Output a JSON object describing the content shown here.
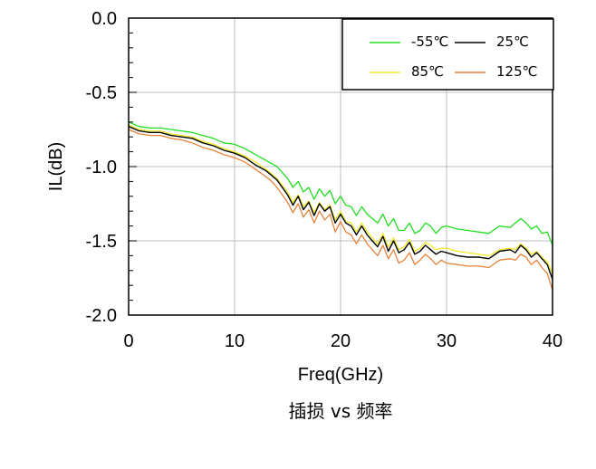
{
  "chart_data": {
    "type": "line",
    "caption": "插损 vs 频率",
    "xlabel": "Freq(GHz)",
    "ylabel": "IL(dB)",
    "xlim": [
      0,
      40
    ],
    "ylim": [
      -2.0,
      0.0
    ],
    "xticks": [
      0,
      10,
      20,
      30,
      40
    ],
    "xtick_labels": [
      "0",
      "10",
      "20",
      "30",
      "40"
    ],
    "yticks": [
      0.0,
      -0.5,
      -1.0,
      -1.5,
      -2.0
    ],
    "ytick_labels": [
      "0.0",
      "-0.5",
      "-1.0",
      "-1.5",
      "-2.0"
    ],
    "grid": true,
    "legend_position": "top-right",
    "x": [
      0,
      1,
      2,
      3,
      4,
      5,
      6,
      7,
      8,
      9,
      10,
      11,
      12,
      13,
      13.5,
      14,
      15,
      15.5,
      16,
      16.5,
      17,
      17.5,
      18,
      18.5,
      19,
      19.5,
      20,
      20.5,
      21,
      21.5,
      22,
      22.5,
      23,
      23.5,
      24,
      24.5,
      25,
      25.5,
      26,
      26.5,
      27,
      27.5,
      28,
      28.5,
      29,
      29.5,
      30,
      31,
      32,
      33,
      34,
      35,
      36,
      36.5,
      37,
      37.5,
      38,
      38.5,
      39,
      39.5,
      40
    ],
    "series": [
      {
        "name": "-55℃",
        "color": "#22dd22",
        "values": [
          -0.7,
          -0.73,
          -0.74,
          -0.74,
          -0.75,
          -0.76,
          -0.77,
          -0.79,
          -0.81,
          -0.84,
          -0.85,
          -0.88,
          -0.92,
          -0.96,
          -0.98,
          -1.0,
          -1.08,
          -1.14,
          -1.1,
          -1.17,
          -1.14,
          -1.22,
          -1.15,
          -1.2,
          -1.16,
          -1.25,
          -1.2,
          -1.26,
          -1.27,
          -1.33,
          -1.27,
          -1.32,
          -1.35,
          -1.38,
          -1.32,
          -1.4,
          -1.35,
          -1.43,
          -1.43,
          -1.38,
          -1.45,
          -1.43,
          -1.38,
          -1.4,
          -1.45,
          -1.41,
          -1.4,
          -1.42,
          -1.43,
          -1.44,
          -1.45,
          -1.4,
          -1.41,
          -1.38,
          -1.35,
          -1.38,
          -1.42,
          -1.4,
          -1.45,
          -1.44,
          -1.53
        ]
      },
      {
        "name": "25℃",
        "color": "#000000",
        "values": [
          -0.73,
          -0.76,
          -0.77,
          -0.77,
          -0.79,
          -0.8,
          -0.81,
          -0.84,
          -0.86,
          -0.89,
          -0.91,
          -0.94,
          -0.99,
          -1.03,
          -1.06,
          -1.09,
          -1.19,
          -1.26,
          -1.2,
          -1.29,
          -1.24,
          -1.33,
          -1.25,
          -1.3,
          -1.27,
          -1.38,
          -1.32,
          -1.38,
          -1.4,
          -1.46,
          -1.4,
          -1.46,
          -1.5,
          -1.54,
          -1.47,
          -1.57,
          -1.5,
          -1.58,
          -1.56,
          -1.51,
          -1.59,
          -1.57,
          -1.53,
          -1.56,
          -1.59,
          -1.57,
          -1.58,
          -1.6,
          -1.61,
          -1.61,
          -1.62,
          -1.57,
          -1.56,
          -1.58,
          -1.53,
          -1.56,
          -1.61,
          -1.58,
          -1.62,
          -1.66,
          -1.76
        ]
      },
      {
        "name": "85℃",
        "color": "#f2ea2a",
        "values": [
          -0.72,
          -0.75,
          -0.76,
          -0.76,
          -0.78,
          -0.79,
          -0.8,
          -0.83,
          -0.85,
          -0.88,
          -0.9,
          -0.93,
          -0.97,
          -1.02,
          -1.05,
          -1.08,
          -1.17,
          -1.24,
          -1.19,
          -1.27,
          -1.23,
          -1.31,
          -1.24,
          -1.29,
          -1.26,
          -1.36,
          -1.3,
          -1.37,
          -1.38,
          -1.44,
          -1.38,
          -1.44,
          -1.48,
          -1.52,
          -1.45,
          -1.54,
          -1.48,
          -1.56,
          -1.54,
          -1.49,
          -1.57,
          -1.55,
          -1.51,
          -1.53,
          -1.56,
          -1.55,
          -1.55,
          -1.57,
          -1.58,
          -1.59,
          -1.6,
          -1.56,
          -1.55,
          -1.56,
          -1.52,
          -1.55,
          -1.59,
          -1.57,
          -1.61,
          -1.64,
          -1.72
        ]
      },
      {
        "name": "125℃",
        "color": "#e8823a",
        "values": [
          -0.75,
          -0.78,
          -0.79,
          -0.79,
          -0.81,
          -0.82,
          -0.84,
          -0.87,
          -0.89,
          -0.92,
          -0.94,
          -0.97,
          -1.02,
          -1.07,
          -1.1,
          -1.14,
          -1.24,
          -1.31,
          -1.25,
          -1.34,
          -1.29,
          -1.38,
          -1.3,
          -1.36,
          -1.32,
          -1.44,
          -1.37,
          -1.44,
          -1.46,
          -1.52,
          -1.46,
          -1.52,
          -1.56,
          -1.6,
          -1.53,
          -1.62,
          -1.56,
          -1.65,
          -1.63,
          -1.58,
          -1.66,
          -1.63,
          -1.59,
          -1.62,
          -1.66,
          -1.63,
          -1.65,
          -1.66,
          -1.67,
          -1.67,
          -1.68,
          -1.63,
          -1.62,
          -1.63,
          -1.59,
          -1.61,
          -1.66,
          -1.63,
          -1.68,
          -1.72,
          -1.83
        ]
      }
    ]
  }
}
